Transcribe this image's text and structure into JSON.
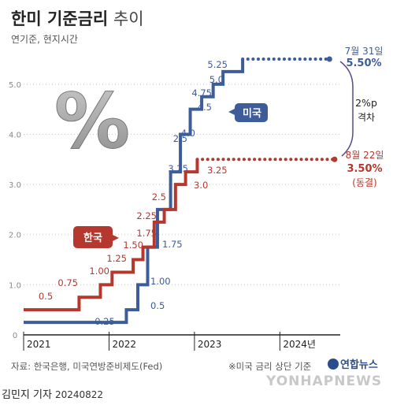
{
  "title": {
    "main": "한미 기준금리",
    "sub": "추이"
  },
  "subtitle": "연기준, 현지시간",
  "source": "자료: 한국은행, 미국연방준비제도(Fed)",
  "footnote": "※미국 금리 상단 기준",
  "logo_text": "연합뉴스",
  "credit": {
    "author": "김민지 기자",
    "date": "20240822"
  },
  "watermark": "YONHAPNEWS",
  "chart_data": {
    "type": "line",
    "step": true,
    "title": "한미 기준금리 추이",
    "ylim": [
      0,
      5.5
    ],
    "yticks": [
      "0",
      "1.0",
      "2.0",
      "3.0",
      "4.0",
      "5.0"
    ],
    "ytick_values": [
      0,
      1,
      2,
      3,
      4,
      5
    ],
    "xticks": [
      "2021",
      "2022",
      "2023",
      "2024년"
    ],
    "xtick_values": [
      "2021-01-01",
      "2022-01-01",
      "2023-01-01",
      "2024-01-01"
    ],
    "xlim": [
      "2021-01-01",
      "2024-09-15"
    ],
    "grid": true,
    "legend": "inline",
    "series": [
      {
        "name": "미국",
        "color": "#3d5c99",
        "points": [
          [
            "2021-01-01",
            0.25
          ],
          [
            "2022-03-16",
            0.5
          ],
          [
            "2022-05-04",
            1.0
          ],
          [
            "2022-06-15",
            1.75
          ],
          [
            "2022-07-27",
            2.5
          ],
          [
            "2022-09-21",
            3.25
          ],
          [
            "2022-11-02",
            4.0
          ],
          [
            "2022-12-14",
            4.5
          ],
          [
            "2023-02-01",
            4.75
          ],
          [
            "2023-03-22",
            5.0
          ],
          [
            "2023-05-03",
            5.25
          ],
          [
            "2023-07-26",
            5.5
          ],
          [
            "2024-07-31",
            5.5
          ]
        ],
        "step_labels": [
          "0.25",
          "0.5",
          "1.00",
          "1.75",
          "2.5",
          "3.25",
          "4.0",
          "4.5",
          "4.75",
          "5.0",
          "5.25"
        ],
        "end_label": {
          "date": "7월 31일",
          "value": "5.50%"
        }
      },
      {
        "name": "한국",
        "color": "#b5382e",
        "points": [
          [
            "2021-01-01",
            0.5
          ],
          [
            "2021-08-26",
            0.75
          ],
          [
            "2021-11-25",
            1.0
          ],
          [
            "2022-01-14",
            1.25
          ],
          [
            "2022-04-14",
            1.5
          ],
          [
            "2022-05-26",
            1.75
          ],
          [
            "2022-07-13",
            2.25
          ],
          [
            "2022-08-25",
            2.5
          ],
          [
            "2022-10-12",
            3.0
          ],
          [
            "2022-11-24",
            3.25
          ],
          [
            "2023-01-13",
            3.5
          ],
          [
            "2024-08-22",
            3.5
          ]
        ],
        "step_labels": [
          "0.5",
          "0.75",
          "1.00",
          "1.25",
          "1.50",
          "1.75",
          "2.25",
          "3.0",
          "3.25"
        ],
        "end_label": {
          "date": "8월 22일",
          "value": "3.50%",
          "note": "(동결)"
        }
      }
    ],
    "gap_annotation": {
      "value": "2%p",
      "text": "격차"
    }
  }
}
